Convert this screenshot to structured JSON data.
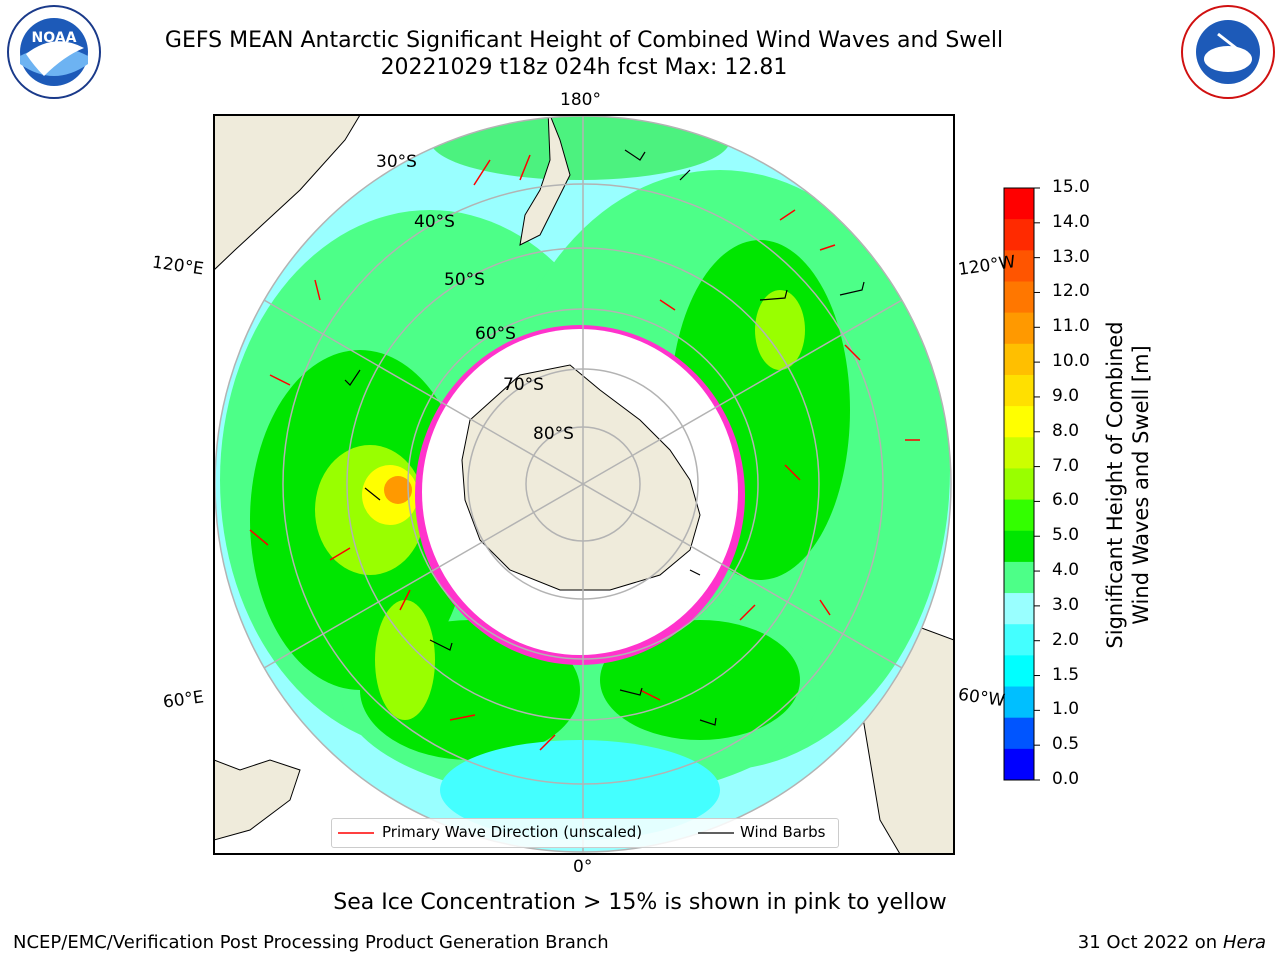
{
  "title": {
    "line1": "GEFS MEAN Antarctic Significant Height of Combined Wind Waves and Swell",
    "line2": "20221029 t18z 024h fcst   Max: 12.81"
  },
  "logos": {
    "left": "noaa-logo",
    "right": "national-weather-service-logo"
  },
  "map": {
    "projection": "south-polar-stereographic",
    "longitude_labels": [
      "180°",
      "120°E",
      "120°W",
      "60°E",
      "60°W",
      "0°"
    ],
    "latitude_labels": [
      "30°S",
      "40°S",
      "50°S",
      "60°S",
      "70°S",
      "80°S"
    ],
    "colors": {
      "land": "#efebdb",
      "ice_shelf": "#ffffff",
      "sea_ice_edge": "#ff33cc",
      "graticule": "#b3b3b3"
    }
  },
  "legend": {
    "wave_direction": "Primary Wave Direction (unscaled)",
    "wind_barbs": "Wind Barbs",
    "wave_color": "#ff0000",
    "barb_color": "#000000"
  },
  "colorbar": {
    "label_line1": "Significant Height of Combined",
    "label_line2": "Wind Waves and Swell [m]",
    "ticks": [
      "15.0",
      "14.0",
      "13.0",
      "12.0",
      "11.0",
      "10.0",
      "9.0",
      "8.0",
      "7.0",
      "6.0",
      "5.0",
      "4.0",
      "3.0",
      "2.0",
      "1.5",
      "1.0",
      "0.5",
      "0.0"
    ],
    "colors": [
      "#0000ff",
      "#0055ff",
      "#00bfff",
      "#00ffff",
      "#44ffff",
      "#99ffff",
      "#4dff88",
      "#00e600",
      "#33ff00",
      "#99ff00",
      "#ccff00",
      "#ffff00",
      "#ffe000",
      "#ffbf00",
      "#ff9900",
      "#ff7700",
      "#ff5500",
      "#ff2a00",
      "#ff0000"
    ]
  },
  "caption": "Sea Ice Concentration > 15% is shown in pink to yellow",
  "footer": {
    "left": "NCEP/EMC/Verification Post Processing Product Generation Branch",
    "right_prefix": "31 Oct 2022 on ",
    "right_host": "Hera"
  }
}
